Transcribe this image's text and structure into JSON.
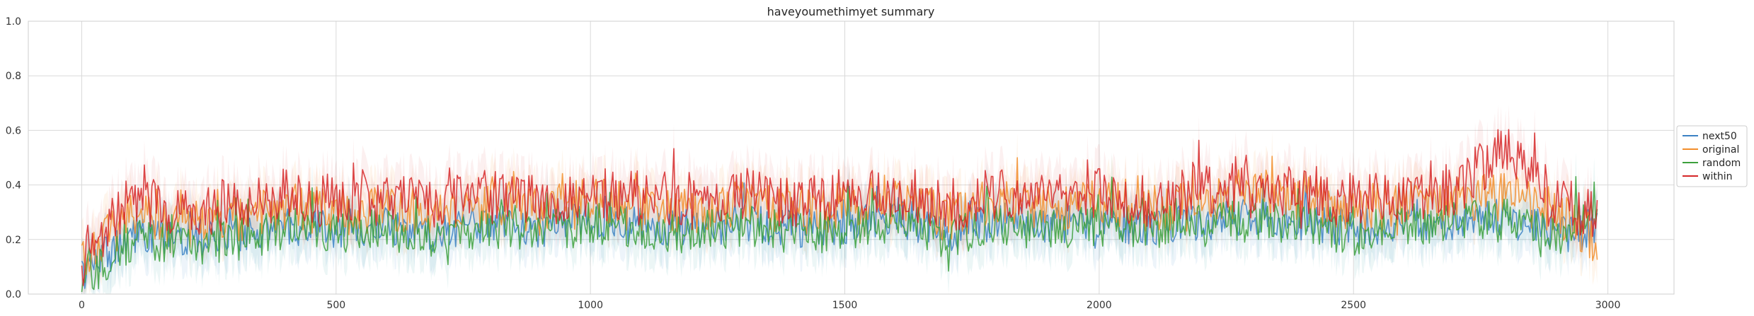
{
  "chart_data": {
    "type": "line",
    "title": "haveyoumethimyet summary",
    "xlabel": "",
    "ylabel": "",
    "xlim": [
      -105,
      3130
    ],
    "ylim": [
      0.0,
      1.0
    ],
    "xticks": [
      0,
      500,
      1000,
      1500,
      2000,
      2500,
      3000
    ],
    "xtick_labels": [
      "0",
      "500",
      "1000",
      "1500",
      "2000",
      "2500",
      "3000"
    ],
    "yticks": [
      0.0,
      0.2,
      0.4,
      0.6,
      0.8,
      1.0
    ],
    "ytick_labels": [
      "0.0",
      "0.2",
      "0.4",
      "0.6",
      "0.8",
      "1.0"
    ],
    "grid": true,
    "legend_position": "right-outside",
    "x_max": 2980,
    "series": [
      {
        "name": "next50",
        "color": "#3b82c4",
        "band_color": "#3b82c4",
        "x": [
          0,
          100,
          200,
          300,
          400,
          500,
          600,
          700,
          800,
          900,
          1000,
          1100,
          1200,
          1300,
          1400,
          1500,
          1600,
          1700,
          1800,
          1900,
          2000,
          2100,
          2200,
          2300,
          2400,
          2500,
          2600,
          2700,
          2800,
          2900,
          2980
        ],
        "values": [
          0.08,
          0.22,
          0.2,
          0.22,
          0.25,
          0.24,
          0.25,
          0.22,
          0.26,
          0.24,
          0.27,
          0.25,
          0.24,
          0.26,
          0.24,
          0.25,
          0.28,
          0.22,
          0.27,
          0.25,
          0.26,
          0.25,
          0.26,
          0.28,
          0.27,
          0.24,
          0.26,
          0.27,
          0.28,
          0.22,
          0.24
        ]
      },
      {
        "name": "original",
        "color": "#f28e2b",
        "band_color": "#f28e2b",
        "x": [
          0,
          100,
          200,
          300,
          400,
          500,
          600,
          700,
          800,
          900,
          1000,
          1100,
          1200,
          1300,
          1400,
          1500,
          1600,
          1700,
          1800,
          1900,
          2000,
          2100,
          2200,
          2300,
          2400,
          2500,
          2600,
          2700,
          2800,
          2900,
          2980
        ],
        "values": [
          0.1,
          0.3,
          0.26,
          0.27,
          0.32,
          0.3,
          0.32,
          0.28,
          0.34,
          0.3,
          0.34,
          0.31,
          0.3,
          0.34,
          0.3,
          0.32,
          0.35,
          0.28,
          0.34,
          0.31,
          0.34,
          0.31,
          0.34,
          0.38,
          0.36,
          0.31,
          0.33,
          0.34,
          0.36,
          0.3,
          0.2
        ]
      },
      {
        "name": "random",
        "color": "#3ca03c",
        "band_color": "#2e9d9d",
        "x": [
          0,
          100,
          200,
          300,
          400,
          500,
          600,
          700,
          800,
          900,
          1000,
          1100,
          1200,
          1300,
          1400,
          1500,
          1600,
          1700,
          1800,
          1900,
          2000,
          2100,
          2200,
          2300,
          2400,
          2500,
          2600,
          2700,
          2800,
          2900,
          2980
        ],
        "values": [
          0.05,
          0.2,
          0.18,
          0.2,
          0.24,
          0.23,
          0.24,
          0.19,
          0.25,
          0.22,
          0.26,
          0.24,
          0.22,
          0.25,
          0.22,
          0.23,
          0.27,
          0.2,
          0.26,
          0.24,
          0.25,
          0.24,
          0.25,
          0.27,
          0.26,
          0.22,
          0.25,
          0.26,
          0.27,
          0.2,
          0.35
        ]
      },
      {
        "name": "within",
        "color": "#d62728",
        "band_color": "#e05a5a",
        "x": [
          0,
          100,
          200,
          300,
          400,
          500,
          600,
          700,
          800,
          900,
          1000,
          1100,
          1200,
          1300,
          1400,
          1500,
          1600,
          1700,
          1800,
          1900,
          2000,
          2100,
          2200,
          2300,
          2400,
          2500,
          2600,
          2700,
          2800,
          2900,
          2980
        ],
        "values": [
          0.12,
          0.36,
          0.3,
          0.33,
          0.36,
          0.34,
          0.35,
          0.32,
          0.37,
          0.34,
          0.37,
          0.35,
          0.33,
          0.37,
          0.33,
          0.36,
          0.38,
          0.32,
          0.38,
          0.35,
          0.37,
          0.34,
          0.37,
          0.4,
          0.38,
          0.34,
          0.36,
          0.38,
          0.55,
          0.33,
          0.3
        ]
      }
    ]
  }
}
